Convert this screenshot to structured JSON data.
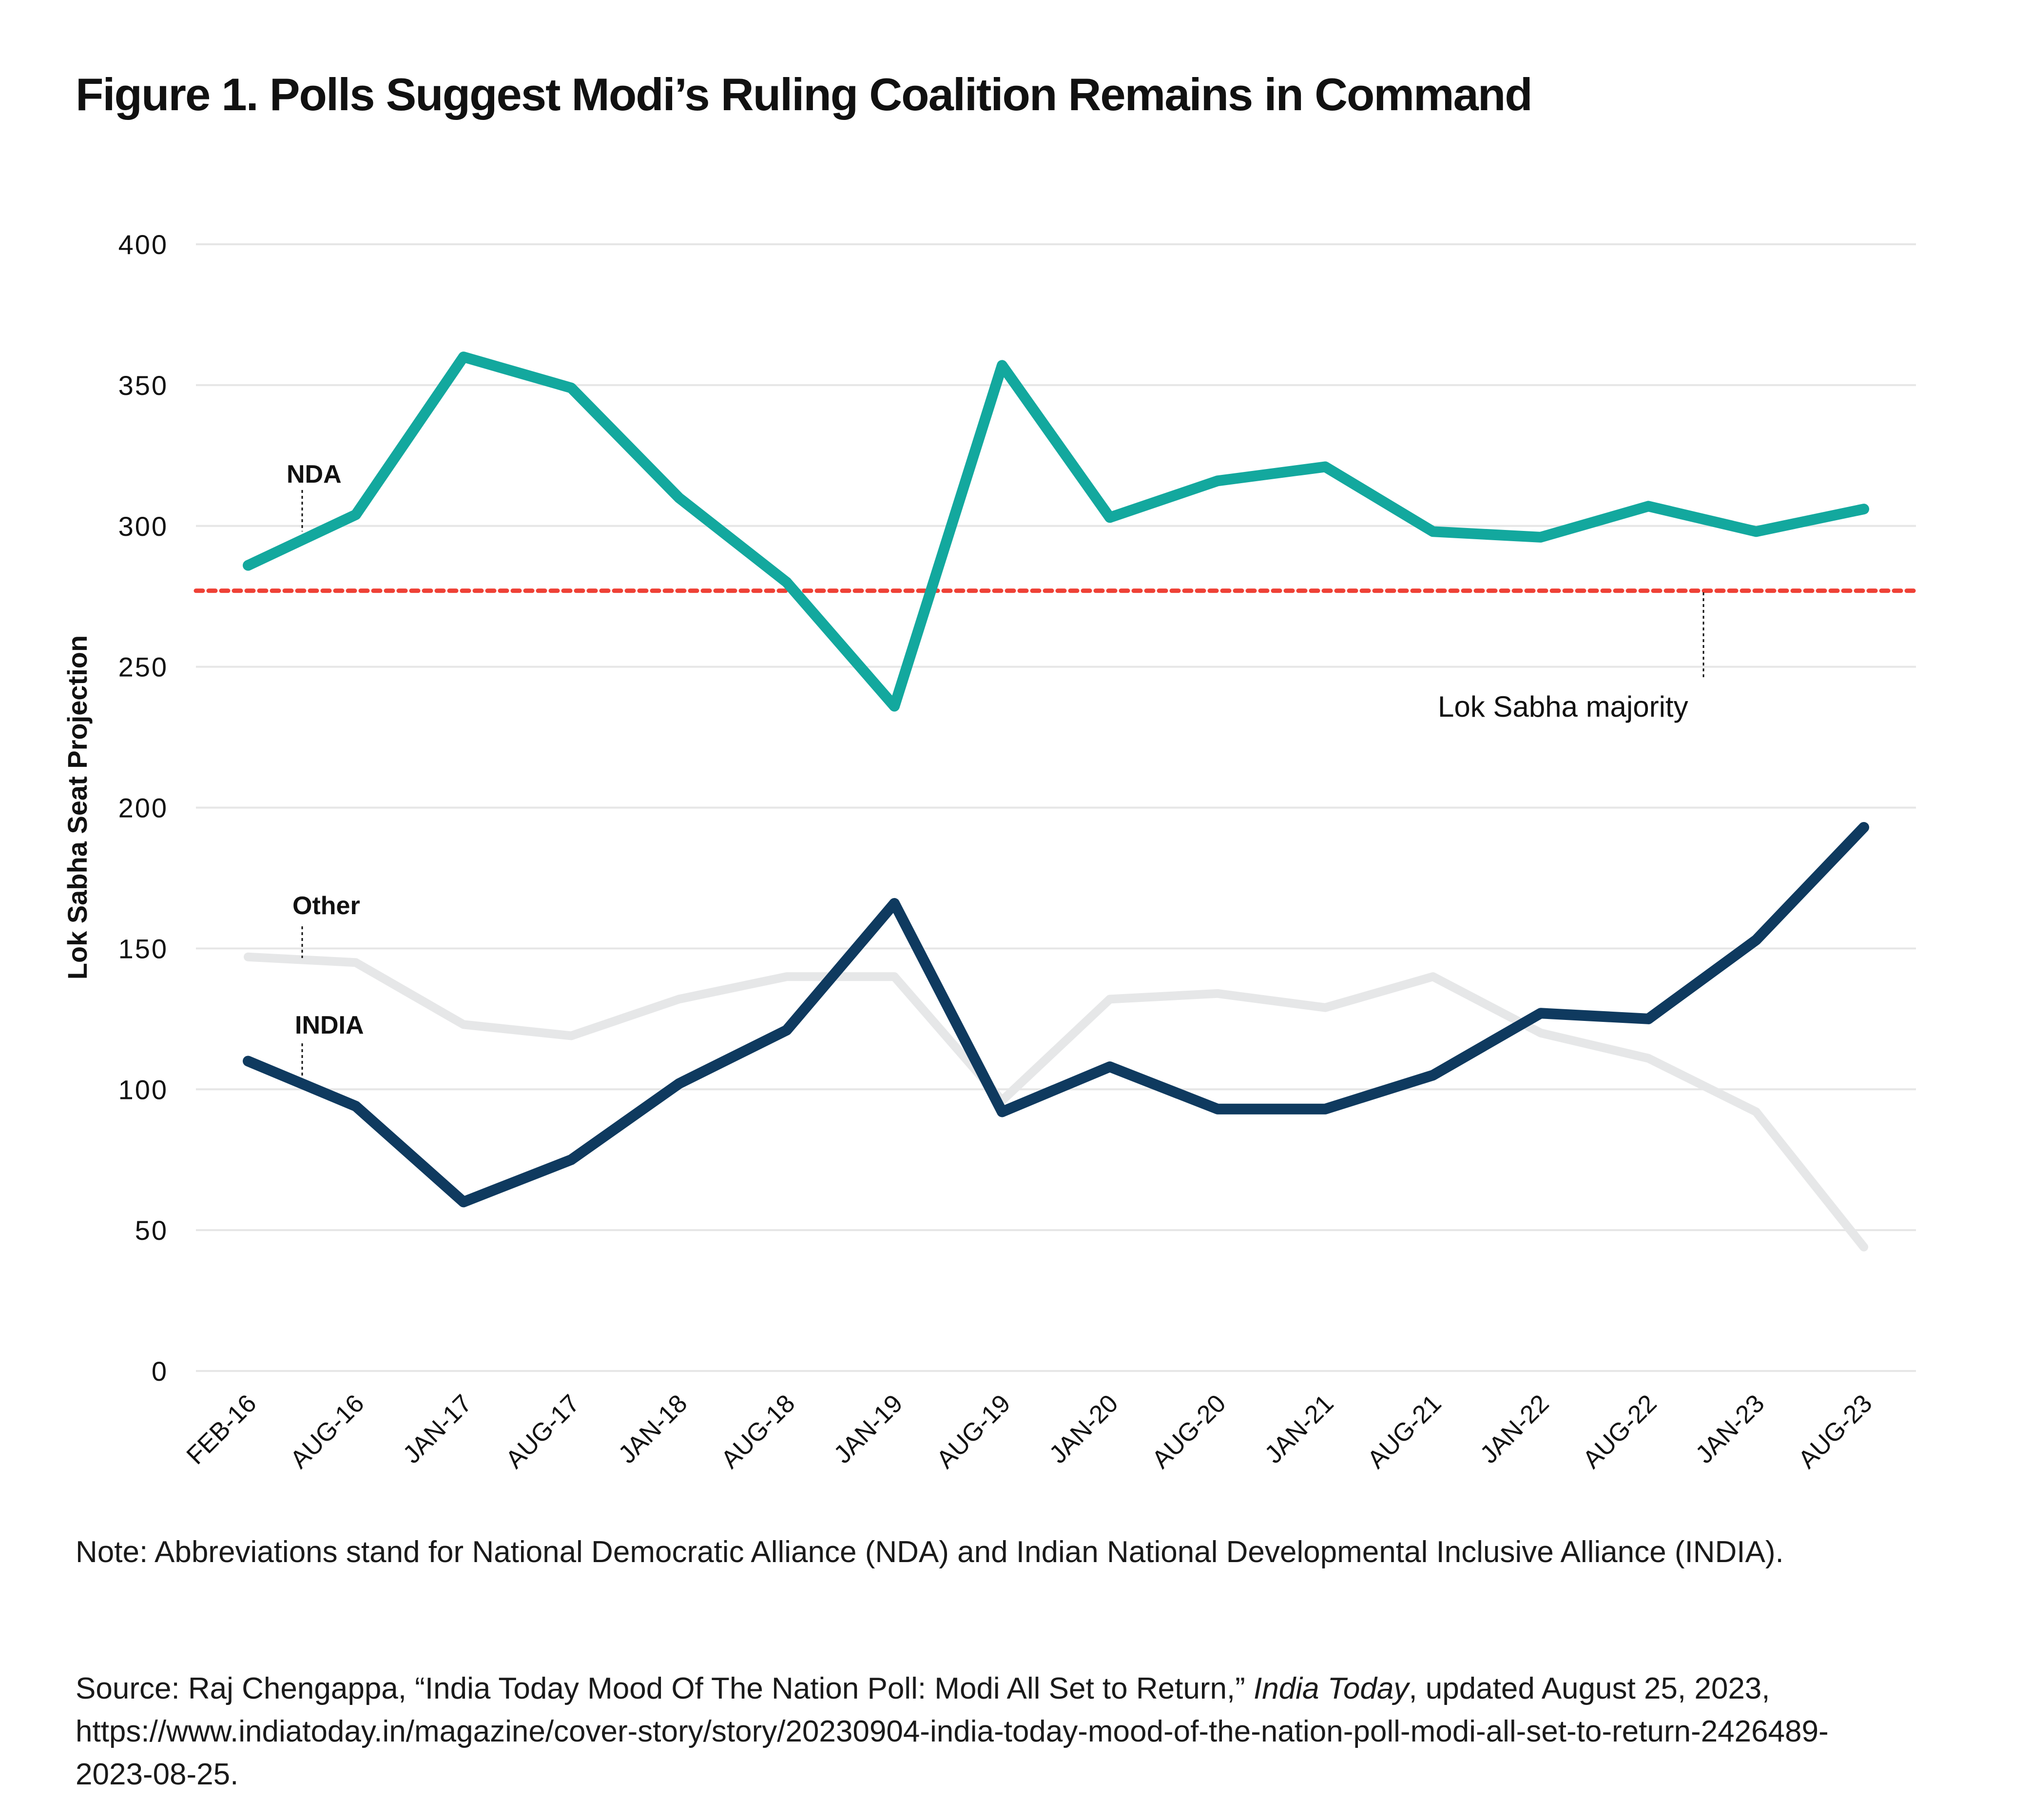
{
  "title": "Figure 1. Polls Suggest Modi’s Ruling Coalition Remains in Command",
  "note": "Note: Abbreviations stand for National Democratic Alliance (NDA) and Indian National Developmental Inclusive Alliance (INDIA).",
  "source_prefix": "Source: Raj Chengappa, “India Today Mood Of The Nation Poll: Modi All Set to Return,” ",
  "source_italic": "India Today",
  "source_suffix": ", updated August 25, 2023, https://www.indiatoday.in/magazine/cover-story/story/20230904-india-today-mood-of-the-nation-poll-modi-all-set-to-return-2426489-2023-08-25.",
  "chart_data": {
    "type": "line",
    "title": "Figure 1. Polls Suggest Modi’s Ruling Coalition Remains in Command",
    "xlabel": "",
    "ylabel": "Lok Sabha Seat Projection",
    "ylim": [
      0,
      400
    ],
    "yticks": [
      0,
      50,
      100,
      150,
      200,
      250,
      300,
      350,
      400
    ],
    "grid": true,
    "categories": [
      "FEB-16",
      "AUG-16",
      "JAN-17",
      "AUG-17",
      "JAN-18",
      "AUG-18",
      "JAN-19",
      "AUG-19",
      "JAN-20",
      "AUG-20",
      "JAN-21",
      "AUG-21",
      "JAN-22",
      "AUG-22",
      "JAN-23",
      "AUG-23"
    ],
    "series": [
      {
        "name": "NDA",
        "color": "#13a89e",
        "values": [
          286,
          304,
          360,
          349,
          310,
          280,
          236,
          357,
          303,
          316,
          321,
          298,
          296,
          307,
          298,
          306
        ]
      },
      {
        "name": "Other",
        "color": "#e6e7e8",
        "values": [
          147,
          145,
          123,
          119,
          132,
          140,
          140,
          96,
          132,
          134,
          129,
          140,
          120,
          111,
          92,
          44
        ]
      },
      {
        "name": "INDIA",
        "color": "#0f3a5f",
        "values": [
          110,
          94,
          60,
          75,
          102,
          121,
          166,
          92,
          108,
          93,
          93,
          105,
          127,
          125,
          153,
          193
        ]
      }
    ],
    "reference_line": {
      "label": "Lok Sabha majority",
      "value": 277,
      "color": "#ef4136",
      "style": "dashed"
    }
  }
}
